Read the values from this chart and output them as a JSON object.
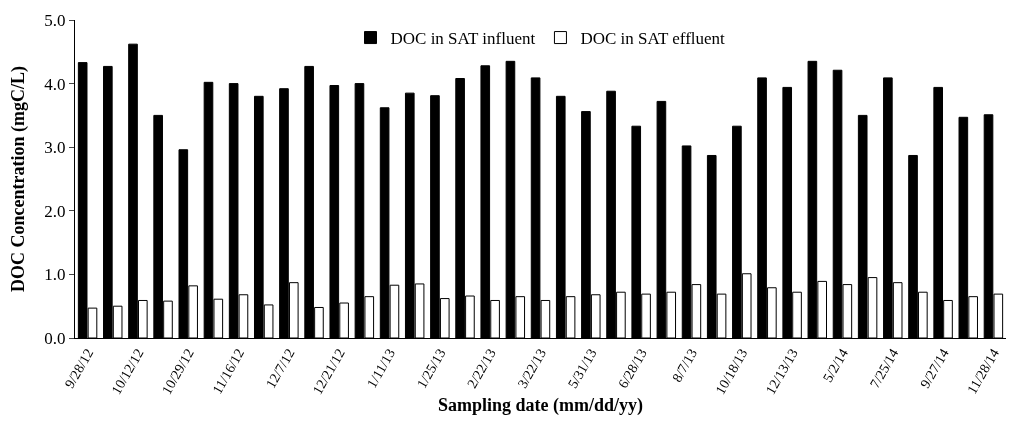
{
  "chart_data": {
    "type": "bar",
    "xlabel": "Sampling date (mm/dd/yy)",
    "ylabel": "DOC Concentration (mgC/L)",
    "categories": [
      "9/28/12",
      null,
      "10/12/12",
      null,
      "10/29/12",
      null,
      "11/16/12",
      null,
      "12/7/12",
      null,
      "12/21/12",
      null,
      "1/11/13",
      null,
      "1/25/13",
      null,
      "2/22/13",
      null,
      "3/22/13",
      null,
      "5/31/13",
      null,
      "6/28/13",
      null,
      "8/7/13",
      null,
      "10/18/13",
      null,
      "12/13/13",
      null,
      "5/2/14",
      null,
      "7/25/14",
      null,
      "9/27/14",
      null,
      "11/28/14"
    ],
    "series": [
      {
        "name": "DOC in SAT influent",
        "color": "#000000",
        "values": [
          4.33,
          4.27,
          4.62,
          3.5,
          2.96,
          4.02,
          4.0,
          3.8,
          3.92,
          4.27,
          3.97,
          4.0,
          3.62,
          3.85,
          3.81,
          4.08,
          4.28,
          4.35,
          4.09,
          3.8,
          3.56,
          3.88,
          3.33,
          3.72,
          3.02,
          2.87,
          3.33,
          4.09,
          3.94,
          4.35,
          4.21,
          3.5,
          4.09,
          2.87,
          3.94,
          3.47,
          3.51
        ]
      },
      {
        "name": "DOC in SAT effluent",
        "color": "#ffffff",
        "values": [
          0.47,
          0.5,
          0.59,
          0.58,
          0.82,
          0.61,
          0.68,
          0.52,
          0.87,
          0.48,
          0.55,
          0.65,
          0.83,
          0.85,
          0.62,
          0.66,
          0.59,
          0.65,
          0.59,
          0.65,
          0.68,
          0.72,
          0.69,
          0.72,
          0.84,
          0.69,
          1.01,
          0.79,
          0.72,
          0.89,
          0.84,
          0.95,
          0.87,
          0.72,
          0.59,
          0.65,
          0.69
        ]
      }
    ],
    "ylim": [
      0,
      5
    ],
    "yticks": [
      {
        "value": 0,
        "label": "0.0"
      },
      {
        "value": 1,
        "label": "1.0"
      },
      {
        "value": 2,
        "label": "2.0"
      },
      {
        "value": 3,
        "label": "3.0"
      },
      {
        "value": 4,
        "label": "4.0"
      },
      {
        "value": 5,
        "label": "5.0"
      }
    ],
    "legend": "top"
  }
}
